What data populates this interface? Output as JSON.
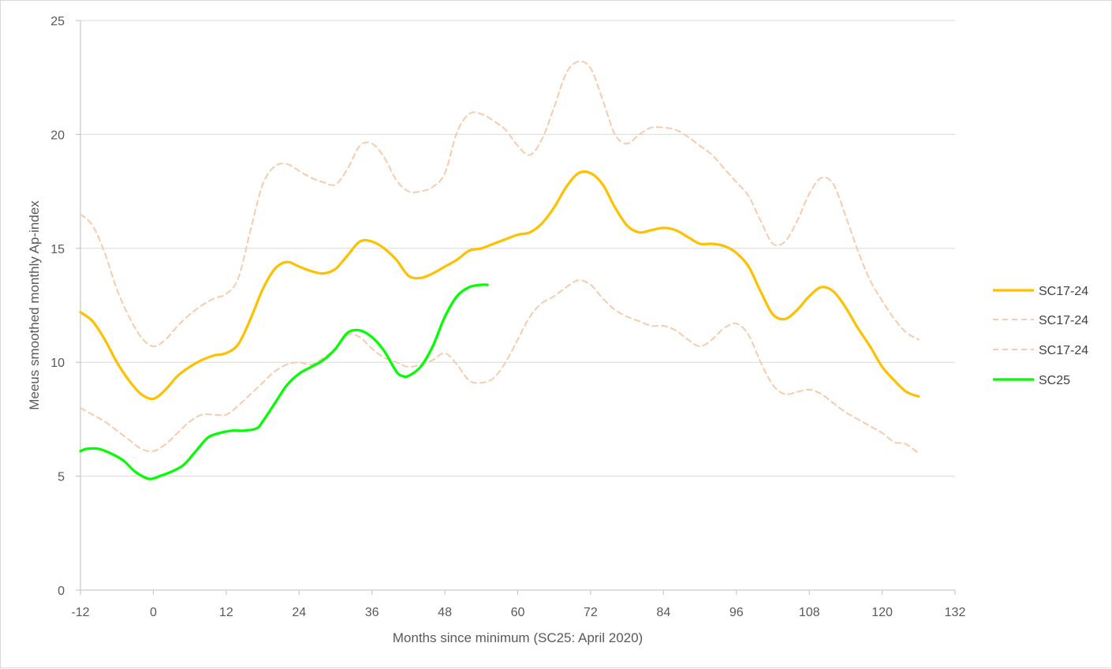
{
  "chart_data": {
    "type": "line",
    "title": "",
    "xlabel": "Months since minimum (SC25: April 2020)",
    "ylabel": "Meeus smoothed monthly Ap-index",
    "xlim": [
      -12,
      132
    ],
    "ylim": [
      0,
      25
    ],
    "x_ticks": [
      "-12",
      "0",
      "12",
      "24",
      "36",
      "48",
      "60",
      "72",
      "84",
      "96",
      "108",
      "120",
      "132"
    ],
    "y_ticks": [
      "0",
      "5",
      "10",
      "15",
      "20",
      "25"
    ],
    "grid": "horizontal",
    "legend_position": "right",
    "series": [
      {
        "name": "SC17-24",
        "color": "#FFC000",
        "style": "solid",
        "points": [
          [
            -12,
            12.2
          ],
          [
            -10,
            11.8
          ],
          [
            -8,
            11.0
          ],
          [
            -6,
            10.0
          ],
          [
            -4,
            9.2
          ],
          [
            -2,
            8.6
          ],
          [
            0,
            8.4
          ],
          [
            2,
            8.8
          ],
          [
            4,
            9.4
          ],
          [
            6,
            9.8
          ],
          [
            8,
            10.1
          ],
          [
            10,
            10.3
          ],
          [
            12,
            10.4
          ],
          [
            14,
            10.8
          ],
          [
            16,
            11.9
          ],
          [
            18,
            13.2
          ],
          [
            20,
            14.1
          ],
          [
            22,
            14.4
          ],
          [
            24,
            14.2
          ],
          [
            26,
            14.0
          ],
          [
            28,
            13.9
          ],
          [
            30,
            14.1
          ],
          [
            32,
            14.7
          ],
          [
            34,
            15.3
          ],
          [
            36,
            15.3
          ],
          [
            38,
            15.0
          ],
          [
            40,
            14.5
          ],
          [
            42,
            13.8
          ],
          [
            44,
            13.7
          ],
          [
            46,
            13.9
          ],
          [
            48,
            14.2
          ],
          [
            50,
            14.5
          ],
          [
            52,
            14.9
          ],
          [
            54,
            15.0
          ],
          [
            56,
            15.2
          ],
          [
            58,
            15.4
          ],
          [
            60,
            15.6
          ],
          [
            62,
            15.7
          ],
          [
            64,
            16.1
          ],
          [
            66,
            16.8
          ],
          [
            68,
            17.7
          ],
          [
            70,
            18.3
          ],
          [
            72,
            18.3
          ],
          [
            74,
            17.8
          ],
          [
            76,
            16.8
          ],
          [
            78,
            16.0
          ],
          [
            80,
            15.7
          ],
          [
            82,
            15.8
          ],
          [
            84,
            15.9
          ],
          [
            86,
            15.8
          ],
          [
            88,
            15.5
          ],
          [
            90,
            15.2
          ],
          [
            92,
            15.2
          ],
          [
            94,
            15.1
          ],
          [
            96,
            14.8
          ],
          [
            98,
            14.2
          ],
          [
            100,
            13.1
          ],
          [
            102,
            12.1
          ],
          [
            104,
            11.9
          ],
          [
            106,
            12.3
          ],
          [
            108,
            12.9
          ],
          [
            110,
            13.3
          ],
          [
            112,
            13.1
          ],
          [
            114,
            12.4
          ],
          [
            116,
            11.5
          ],
          [
            118,
            10.7
          ],
          [
            120,
            9.8
          ],
          [
            122,
            9.2
          ],
          [
            124,
            8.7
          ],
          [
            126,
            8.5
          ]
        ]
      },
      {
        "name": "SC17-24",
        "color": "#F8CBAD",
        "style": "dashed",
        "points": [
          [
            -12,
            16.5
          ],
          [
            -10,
            16.0
          ],
          [
            -8,
            14.8
          ],
          [
            -6,
            13.2
          ],
          [
            -4,
            12.0
          ],
          [
            -2,
            11.1
          ],
          [
            0,
            10.7
          ],
          [
            2,
            11.0
          ],
          [
            4,
            11.6
          ],
          [
            6,
            12.1
          ],
          [
            8,
            12.5
          ],
          [
            10,
            12.8
          ],
          [
            12,
            13.0
          ],
          [
            14,
            13.7
          ],
          [
            16,
            15.8
          ],
          [
            18,
            17.8
          ],
          [
            20,
            18.6
          ],
          [
            22,
            18.7
          ],
          [
            24,
            18.4
          ],
          [
            26,
            18.1
          ],
          [
            28,
            17.9
          ],
          [
            30,
            17.8
          ],
          [
            32,
            18.5
          ],
          [
            34,
            19.5
          ],
          [
            36,
            19.6
          ],
          [
            38,
            19.0
          ],
          [
            40,
            18.0
          ],
          [
            42,
            17.5
          ],
          [
            44,
            17.5
          ],
          [
            46,
            17.7
          ],
          [
            48,
            18.3
          ],
          [
            50,
            20.1
          ],
          [
            52,
            20.9
          ],
          [
            54,
            20.9
          ],
          [
            56,
            20.6
          ],
          [
            58,
            20.2
          ],
          [
            60,
            19.5
          ],
          [
            62,
            19.1
          ],
          [
            64,
            19.8
          ],
          [
            66,
            21.2
          ],
          [
            68,
            22.7
          ],
          [
            70,
            23.2
          ],
          [
            72,
            22.9
          ],
          [
            74,
            21.5
          ],
          [
            76,
            20.0
          ],
          [
            78,
            19.6
          ],
          [
            80,
            20.0
          ],
          [
            82,
            20.3
          ],
          [
            84,
            20.3
          ],
          [
            86,
            20.2
          ],
          [
            88,
            19.9
          ],
          [
            90,
            19.5
          ],
          [
            92,
            19.1
          ],
          [
            94,
            18.5
          ],
          [
            96,
            17.9
          ],
          [
            98,
            17.3
          ],
          [
            100,
            16.2
          ],
          [
            102,
            15.2
          ],
          [
            104,
            15.3
          ],
          [
            106,
            16.2
          ],
          [
            108,
            17.4
          ],
          [
            110,
            18.1
          ],
          [
            112,
            17.8
          ],
          [
            114,
            16.4
          ],
          [
            116,
            14.9
          ],
          [
            118,
            13.6
          ],
          [
            120,
            12.7
          ],
          [
            122,
            11.9
          ],
          [
            124,
            11.3
          ],
          [
            126,
            11.0
          ]
        ]
      },
      {
        "name": "SC17-24",
        "color": "#F8CBAD",
        "style": "dashed",
        "points": [
          [
            -12,
            8.0
          ],
          [
            -10,
            7.7
          ],
          [
            -8,
            7.4
          ],
          [
            -6,
            7.0
          ],
          [
            -4,
            6.6
          ],
          [
            -2,
            6.2
          ],
          [
            0,
            6.1
          ],
          [
            2,
            6.4
          ],
          [
            4,
            6.9
          ],
          [
            6,
            7.4
          ],
          [
            8,
            7.7
          ],
          [
            10,
            7.7
          ],
          [
            12,
            7.7
          ],
          [
            14,
            8.1
          ],
          [
            16,
            8.6
          ],
          [
            18,
            9.1
          ],
          [
            20,
            9.6
          ],
          [
            22,
            9.9
          ],
          [
            24,
            10.0
          ],
          [
            26,
            9.9
          ],
          [
            28,
            10.2
          ],
          [
            30,
            10.6
          ],
          [
            32,
            11.2
          ],
          [
            34,
            11.1
          ],
          [
            36,
            10.6
          ],
          [
            38,
            10.2
          ],
          [
            40,
            10.0
          ],
          [
            42,
            9.8
          ],
          [
            44,
            9.9
          ],
          [
            46,
            10.1
          ],
          [
            48,
            10.4
          ],
          [
            50,
            9.9
          ],
          [
            52,
            9.2
          ],
          [
            54,
            9.1
          ],
          [
            56,
            9.3
          ],
          [
            58,
            10.0
          ],
          [
            60,
            11.0
          ],
          [
            62,
            12.0
          ],
          [
            64,
            12.6
          ],
          [
            66,
            12.9
          ],
          [
            68,
            13.3
          ],
          [
            70,
            13.6
          ],
          [
            72,
            13.4
          ],
          [
            74,
            12.8
          ],
          [
            76,
            12.3
          ],
          [
            78,
            12.0
          ],
          [
            80,
            11.8
          ],
          [
            82,
            11.6
          ],
          [
            84,
            11.6
          ],
          [
            86,
            11.4
          ],
          [
            88,
            11.0
          ],
          [
            90,
            10.7
          ],
          [
            92,
            11.0
          ],
          [
            94,
            11.5
          ],
          [
            96,
            11.7
          ],
          [
            98,
            11.2
          ],
          [
            100,
            10.0
          ],
          [
            102,
            9.0
          ],
          [
            104,
            8.6
          ],
          [
            106,
            8.7
          ],
          [
            108,
            8.8
          ],
          [
            110,
            8.6
          ],
          [
            112,
            8.2
          ],
          [
            114,
            7.8
          ],
          [
            116,
            7.5
          ],
          [
            118,
            7.2
          ],
          [
            120,
            6.9
          ],
          [
            122,
            6.5
          ],
          [
            124,
            6.4
          ],
          [
            126,
            6.0
          ]
        ]
      },
      {
        "name": "SC25",
        "color": "#00FF00",
        "style": "solid",
        "points": [
          [
            -12,
            6.1
          ],
          [
            -11,
            6.2
          ],
          [
            -9,
            6.2
          ],
          [
            -7,
            6.0
          ],
          [
            -5,
            5.7
          ],
          [
            -3,
            5.2
          ],
          [
            -1,
            4.9
          ],
          [
            0,
            4.9
          ],
          [
            1,
            5.0
          ],
          [
            3,
            5.2
          ],
          [
            5,
            5.5
          ],
          [
            7,
            6.1
          ],
          [
            9,
            6.7
          ],
          [
            11,
            6.9
          ],
          [
            13,
            7.0
          ],
          [
            15,
            7.0
          ],
          [
            17,
            7.1
          ],
          [
            18,
            7.4
          ],
          [
            20,
            8.2
          ],
          [
            22,
            9.0
          ],
          [
            24,
            9.5
          ],
          [
            26,
            9.8
          ],
          [
            28,
            10.1
          ],
          [
            30,
            10.6
          ],
          [
            32,
            11.3
          ],
          [
            34,
            11.4
          ],
          [
            36,
            11.1
          ],
          [
            38,
            10.5
          ],
          [
            40,
            9.6
          ],
          [
            41,
            9.4
          ],
          [
            42,
            9.4
          ],
          [
            44,
            9.8
          ],
          [
            46,
            10.7
          ],
          [
            48,
            12.0
          ],
          [
            50,
            12.9
          ],
          [
            52,
            13.3
          ],
          [
            54,
            13.4
          ],
          [
            55,
            13.4
          ]
        ]
      }
    ]
  }
}
